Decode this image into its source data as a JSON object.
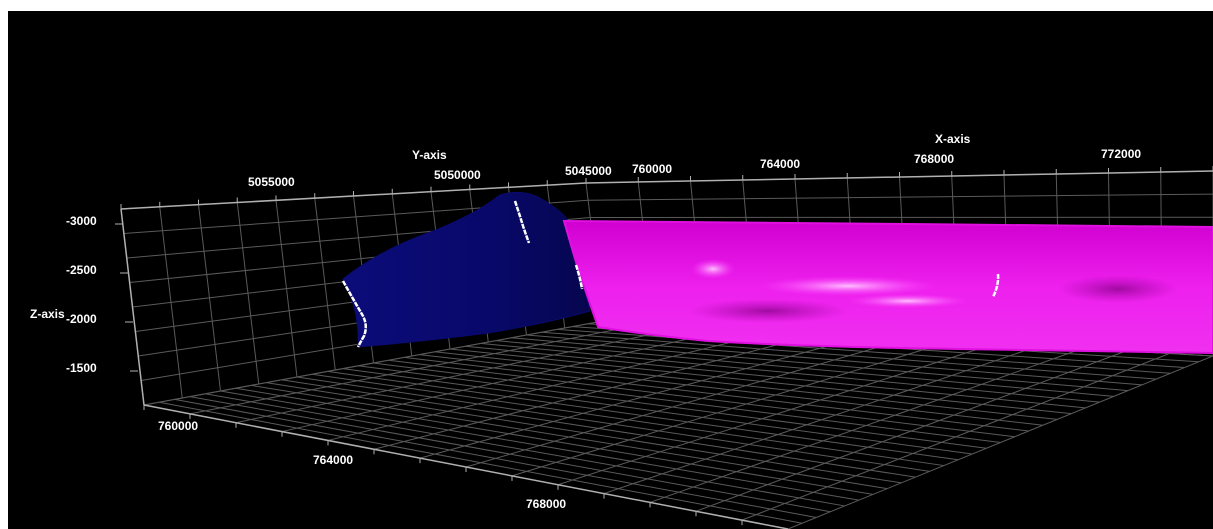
{
  "chart_data": {
    "type": "3d-surface",
    "axes": {
      "x": {
        "title": "X-axis",
        "ticks": [
          "760000",
          "764000",
          "768000",
          "772000"
        ]
      },
      "y": {
        "title": "Y-axis",
        "ticks": [
          "5055000",
          "5050000",
          "5045000"
        ]
      },
      "z": {
        "title": "Z-axis",
        "ticks": [
          "-3000",
          "-2500",
          "-2000",
          "-1500"
        ]
      },
      "floor_x_ticks": [
        "760000",
        "764000",
        "768000"
      ]
    },
    "surfaces": [
      {
        "color": "#0a0a6e"
      },
      {
        "color": "#e010e0"
      }
    ],
    "traces": [
      {
        "color": "#ffffff"
      },
      {
        "color": "#ffffff"
      },
      {
        "color": "#ffffff"
      },
      {
        "color": "#ffffff"
      }
    ],
    "background": "#000000",
    "grid": true
  }
}
